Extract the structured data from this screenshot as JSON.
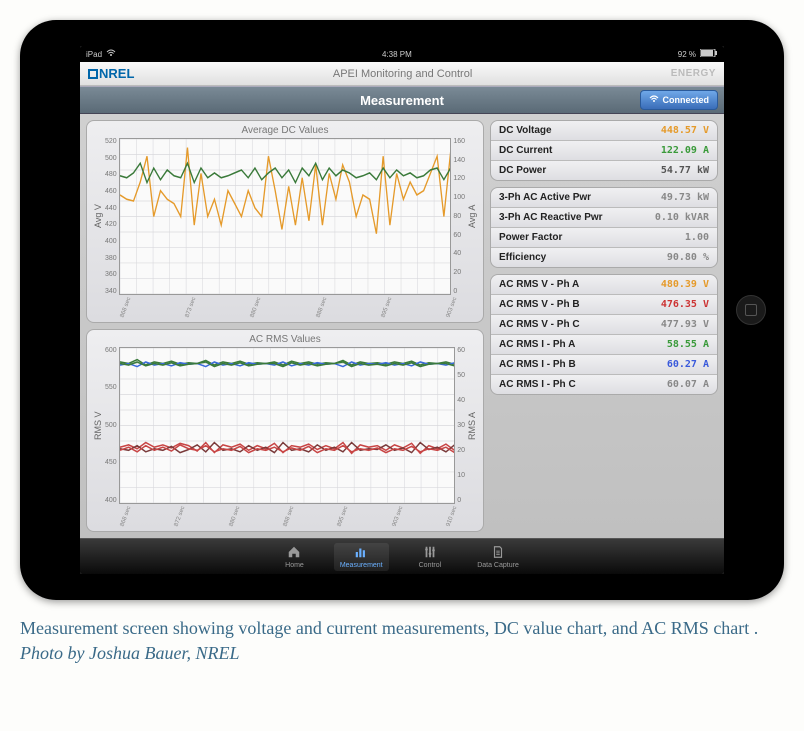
{
  "status_bar": {
    "carrier": "iPad",
    "time": "4:38 PM",
    "battery_pct": "92 %"
  },
  "top_banner": {
    "logo_text": "NREL",
    "center_text": "APEI Monitoring and Control",
    "right_logo": "ENERGY"
  },
  "title_bar": {
    "title": "Measurement",
    "connected_label": "Connected"
  },
  "dc_chart": {
    "title": "Average DC Values",
    "ylabel_left": "Avg V",
    "ylabel_right": "Avg A",
    "left_ticks": [
      "520",
      "500",
      "480",
      "460",
      "440",
      "420",
      "400",
      "380",
      "360",
      "340"
    ],
    "right_ticks": [
      "160",
      "140",
      "120",
      "100",
      "80",
      "60",
      "40",
      "20",
      "0"
    ],
    "xlim_left": [
      340,
      520
    ],
    "xlim_right": [
      0,
      160
    ],
    "xticks": [
      "868 sec",
      "873 sec",
      "880 sec",
      "888 sec",
      "895 sec",
      "903 sec"
    ],
    "series_v_color": "#e59a2a",
    "series_a_color": "#3a7a3a",
    "grid_color": "#d8d8dc",
    "background": "#fafafa",
    "line_width": 1.2,
    "font_size": 9,
    "voltage_series": [
      455,
      450,
      448,
      470,
      500,
      430,
      460,
      450,
      445,
      430,
      510,
      420,
      480,
      430,
      450,
      420,
      460,
      445,
      430,
      460,
      440,
      430,
      500,
      460,
      415,
      465,
      420,
      475,
      425,
      490,
      420,
      480,
      450,
      490,
      470,
      430,
      455,
      450,
      410,
      500,
      420,
      480,
      450,
      470,
      455,
      460,
      480,
      500,
      430,
      505
    ],
    "current_series": [
      122,
      120,
      125,
      135,
      115,
      130,
      118,
      128,
      122,
      120,
      135,
      115,
      130,
      120,
      125,
      120,
      122,
      125,
      128,
      120,
      130,
      118,
      125,
      130,
      120,
      128,
      115,
      130,
      122,
      135,
      118,
      130,
      122,
      128,
      125,
      120,
      122,
      125,
      118,
      130,
      120,
      128,
      122,
      125,
      120,
      122,
      128,
      130,
      118,
      130
    ]
  },
  "ac_chart": {
    "title": "AC RMS Values",
    "ylabel_left": "RMS V",
    "ylabel_right": "RMS A",
    "left_ticks": [
      "600",
      "550",
      "500",
      "450",
      "400"
    ],
    "right_ticks": [
      "60",
      "50",
      "40",
      "30",
      "20",
      "10",
      "0"
    ],
    "xlim_left": [
      400,
      600
    ],
    "xlim_right": [
      0,
      60
    ],
    "xticks": [
      "868 sec",
      "872 sec",
      "880 sec",
      "888 sec",
      "895 sec",
      "903 sec",
      "910 sec"
    ],
    "grid_color": "#d8d8dc",
    "background": "#fafafa",
    "line_width": 1.2,
    "font_size": 9,
    "v_colors": [
      "#3a7a3a",
      "#3a6adb",
      "#3a7a3a"
    ],
    "i_colors": [
      "#c84545",
      "#7a3a3a",
      "#c84545"
    ],
    "voltage_a": [
      582,
      580,
      585,
      578,
      582,
      580,
      583,
      579,
      581,
      580,
      584,
      578,
      582,
      580,
      583,
      579,
      581,
      580,
      582,
      578,
      583,
      580,
      582,
      579,
      581,
      580,
      584,
      578,
      582,
      580,
      581,
      579,
      582,
      580,
      583,
      578,
      581,
      580,
      582,
      579
    ],
    "voltage_b": [
      578,
      580,
      576,
      582,
      578,
      580,
      577,
      581,
      579,
      580,
      576,
      582,
      578,
      580,
      577,
      581,
      579,
      580,
      578,
      582,
      577,
      580,
      578,
      581,
      579,
      580,
      576,
      582,
      578,
      580,
      579,
      581,
      578,
      580,
      577,
      582,
      579,
      580,
      578,
      581
    ],
    "voltage_c": [
      580,
      578,
      582,
      577,
      580,
      578,
      581,
      577,
      579,
      580,
      582,
      576,
      580,
      578,
      581,
      577,
      579,
      580,
      580,
      576,
      581,
      578,
      580,
      577,
      579,
      580,
      582,
      576,
      580,
      578,
      579,
      577,
      580,
      578,
      581,
      576,
      579,
      580,
      580,
      577
    ],
    "current_a": [
      472,
      475,
      470,
      478,
      472,
      475,
      471,
      477,
      474,
      467,
      478,
      465,
      475,
      472,
      476,
      468,
      474,
      470,
      477,
      465,
      474,
      472,
      476,
      469,
      474,
      470,
      478,
      464,
      475,
      472,
      474,
      468,
      475,
      471,
      477,
      464,
      474,
      470,
      476,
      468
    ],
    "current_b": [
      470,
      468,
      474,
      466,
      470,
      468,
      473,
      465,
      469,
      475,
      466,
      478,
      468,
      470,
      466,
      474,
      468,
      472,
      465,
      478,
      468,
      470,
      466,
      475,
      468,
      472,
      466,
      478,
      468,
      470,
      469,
      475,
      468,
      471,
      465,
      478,
      469,
      472,
      466,
      475
    ],
    "current_c": [
      468,
      472,
      466,
      474,
      468,
      472,
      467,
      475,
      470,
      468,
      474,
      466,
      470,
      468,
      473,
      465,
      470,
      468,
      472,
      466,
      471,
      468,
      473,
      465,
      470,
      468,
      474,
      466,
      470,
      468,
      471,
      465,
      470,
      468,
      473,
      466,
      470,
      468,
      472,
      465
    ]
  },
  "value_groups": [
    {
      "rows": [
        {
          "label": "DC Voltage",
          "value": "448.57 V",
          "color": "#e59a2a"
        },
        {
          "label": "DC Current",
          "value": "122.09 A",
          "color": "#3a9a3a"
        },
        {
          "label": "DC Power",
          "value": "54.77 kW",
          "color": "#555555"
        }
      ]
    },
    {
      "rows": [
        {
          "label": "3-Ph AC Active Pwr",
          "value": "49.73 kW",
          "color": "#888888"
        },
        {
          "label": "3-Ph AC Reactive Pwr",
          "value": "0.10 kVAR",
          "color": "#888888"
        },
        {
          "label": "Power Factor",
          "value": "1.00",
          "color": "#888888"
        },
        {
          "label": "Efficiency",
          "value": "90.80 %",
          "color": "#888888"
        }
      ]
    },
    {
      "rows": [
        {
          "label": "AC RMS V - Ph A",
          "value": "480.39 V",
          "color": "#e59a2a"
        },
        {
          "label": "AC RMS V - Ph B",
          "value": "476.35 V",
          "color": "#cc3333"
        },
        {
          "label": "AC RMS V - Ph C",
          "value": "477.93 V",
          "color": "#888888"
        },
        {
          "label": "AC RMS I - Ph A",
          "value": "58.55 A",
          "color": "#3a9a3a"
        },
        {
          "label": "AC RMS I - Ph B",
          "value": "60.27 A",
          "color": "#3a5adb"
        },
        {
          "label": "AC RMS I - Ph C",
          "value": "60.07 A",
          "color": "#888888"
        }
      ]
    }
  ],
  "bottom_nav": [
    {
      "label": "Home",
      "icon": "home-icon",
      "active": false
    },
    {
      "label": "Measurement",
      "icon": "chart-icon",
      "active": true
    },
    {
      "label": "Control",
      "icon": "sliders-icon",
      "active": false
    },
    {
      "label": "Data Capture",
      "icon": "file-icon",
      "active": false
    }
  ],
  "caption": {
    "text": "Measurement screen showing voltage and current measurements, DC value chart, and AC RMS chart . ",
    "credit": "Photo by Joshua Bauer, NREL"
  }
}
